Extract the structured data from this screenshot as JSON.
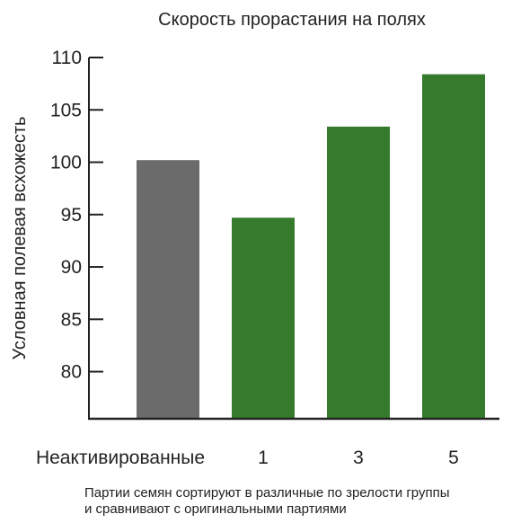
{
  "chart_data": {
    "type": "bar",
    "title": "Скорость прорастания на полях",
    "ylabel": "Условная полевая всхожесть",
    "xlabel": "",
    "categories": [
      "Неактивированные",
      "1",
      "3",
      "5"
    ],
    "values": [
      100.2,
      94.7,
      103.4,
      108.4
    ],
    "colors": [
      "#6b6b6b",
      "#367a2e",
      "#367a2e",
      "#367a2e"
    ],
    "ylim": [
      75.5,
      110
    ],
    "yticks": [
      80,
      85,
      90,
      95,
      100,
      105,
      110
    ],
    "grid": false
  },
  "footnote": {
    "line1": "Партии семян сортируют в различные по зрелости группы",
    "line2": "и сравнивают с оригинальными партиями"
  }
}
